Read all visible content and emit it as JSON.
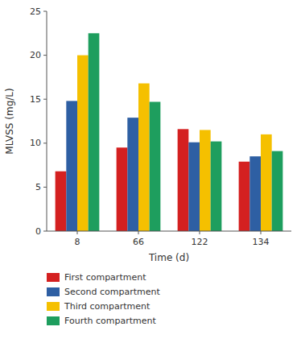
{
  "chart_data": {
    "type": "bar",
    "xlabel": "Time (d)",
    "ylabel": "MLVSS (mg/L)",
    "categories": [
      "8",
      "66",
      "122",
      "134"
    ],
    "series": [
      {
        "name": "First compartment",
        "color": "#d42020",
        "values": [
          6.8,
          9.5,
          11.6,
          7.9
        ]
      },
      {
        "name": "Second compartment",
        "color": "#2e5fa3",
        "values": [
          14.8,
          12.9,
          10.1,
          8.5
        ]
      },
      {
        "name": "Third compartment",
        "color": "#f5c000",
        "values": [
          20.0,
          16.8,
          11.5,
          11.0
        ]
      },
      {
        "name": "Fourth compartment",
        "color": "#1e9e5e",
        "values": [
          22.5,
          14.7,
          10.2,
          9.1
        ]
      }
    ],
    "ylim": [
      0,
      25
    ],
    "yticks": [
      0,
      5,
      10,
      15,
      20,
      25
    ],
    "grid": false,
    "legend": "bottom"
  }
}
